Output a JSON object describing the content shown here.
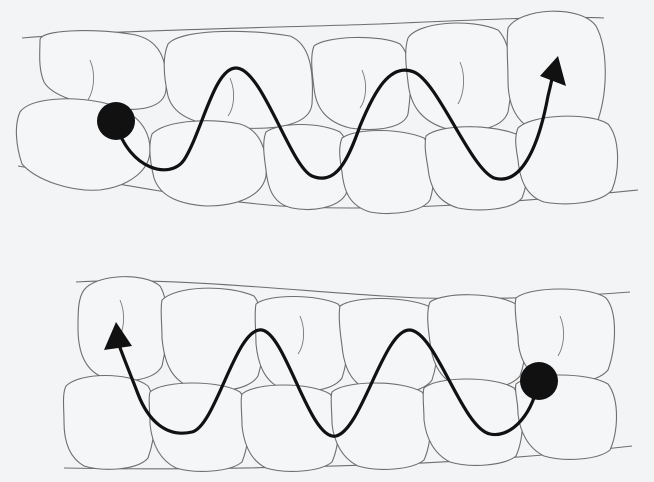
{
  "diagram": {
    "panels": [
      {
        "name": "upper-arch",
        "technique": "brushing-path",
        "path_direction": "left-to-right",
        "start_marker": "start-dot",
        "end_marker": "arrow-head"
      },
      {
        "name": "lower-arch",
        "technique": "brushing-path",
        "path_direction": "right-to-left",
        "start_marker": "start-dot",
        "end_marker": "arrow-head"
      }
    ],
    "colors": {
      "background": "#f3f4f6",
      "tooth_fill": "#f5f6f8",
      "tooth_outline": "#6e6e6e",
      "path": "#111111"
    }
  }
}
